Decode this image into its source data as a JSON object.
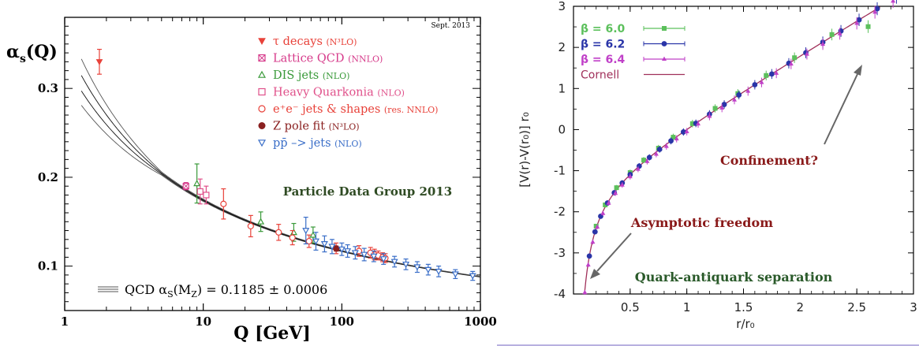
{
  "chart_data": [
    {
      "type": "scatter",
      "corner_note": "Sept. 2013",
      "ylabel_main": "α",
      "ylabel_sub": "s",
      "ylabel_tail": "(Q)",
      "xlabel": "Q [GeV]",
      "xscale": "log",
      "xlim": [
        1,
        1000
      ],
      "ylim": [
        0.05,
        0.38
      ],
      "xticks": [
        1,
        10,
        100,
        1000
      ],
      "xtick_labels": [
        "1",
        "10",
        "100",
        "1000"
      ],
      "yticks": [
        0.1,
        0.2,
        0.3
      ],
      "ytick_labels": [
        "0.1",
        "0.2",
        "0.3"
      ],
      "annotation": "Particle Data Group 2013",
      "band_label": "QCD αS(MZ) = 0.1185 ± 0.0006",
      "band_label_parts": {
        "pre": "QCD α",
        "sub1": "S",
        "mid": "(M",
        "sub2": "Z",
        "post": ") = 0.1185 ± 0.0006"
      },
      "curve": {
        "alpha_mz": 0.1185,
        "mz": 91.19
      },
      "legend": [
        {
          "name": "τ decays",
          "tag": "(N³LO)",
          "marker": "triangle-down-filled",
          "color": "#e8423a"
        },
        {
          "name": "Lattice QCD",
          "tag": "(NNLO)",
          "marker": "square-cross",
          "color": "#d63a8a"
        },
        {
          "name": "DIS jets",
          "tag": "(NLO)",
          "marker": "triangle-up-open",
          "color": "#3a9a3a"
        },
        {
          "name": "Heavy Quarkonia",
          "tag": "(NLO)",
          "marker": "square-open",
          "color": "#e0508a"
        },
        {
          "name": "e⁺e⁻ jets & shapes",
          "tag": "(res. NNLO)",
          "marker": "circle-open",
          "color": "#e8423a"
        },
        {
          "name": "Z pole fit",
          "tag": "(N³LO)",
          "marker": "circle-filled",
          "color": "#8a2020"
        },
        {
          "name": "pp̄ –> jets",
          "tag": "(NLO)",
          "marker": "triangle-down-open",
          "color": "#3a6ec8"
        }
      ],
      "series": [
        {
          "name": "τ decays",
          "points": [
            [
              1.78,
              0.33,
              0.014
            ]
          ]
        },
        {
          "name": "Lattice QCD",
          "points": [
            [
              7.5,
              0.19,
              0.004
            ]
          ]
        },
        {
          "name": "DIS jets",
          "points": [
            [
              9.0,
              0.193,
              0.022
            ],
            [
              26,
              0.15,
              0.011
            ],
            [
              45,
              0.138,
              0.01
            ],
            [
              62,
              0.135,
              0.009
            ]
          ]
        },
        {
          "name": "Heavy Quarkonia",
          "points": [
            [
              9.5,
              0.184,
              0.014
            ],
            [
              10.5,
              0.18,
              0.01
            ]
          ]
        },
        {
          "name": "e⁺e⁻ jets & shapes",
          "points": [
            [
              14,
              0.17,
              0.017
            ],
            [
              22,
              0.145,
              0.012
            ],
            [
              35,
              0.138,
              0.009
            ],
            [
              44,
              0.132,
              0.008
            ],
            [
              58,
              0.128,
              0.007
            ],
            [
              91,
              0.12,
              0.006
            ],
            [
              133,
              0.117,
              0.006
            ],
            [
              161,
              0.115,
              0.006
            ],
            [
              172,
              0.113,
              0.006
            ],
            [
              183,
              0.112,
              0.005
            ],
            [
              197,
              0.11,
              0.005
            ],
            [
              206,
              0.109,
              0.005
            ]
          ]
        },
        {
          "name": "Z pole fit",
          "points": [
            [
              91.2,
              0.1197,
              0.0028
            ]
          ]
        },
        {
          "name": "pp̄ –> jets",
          "points": [
            [
              55,
              0.14,
              0.015
            ],
            [
              65,
              0.128,
              0.01
            ],
            [
              75,
              0.125,
              0.009
            ],
            [
              85,
              0.122,
              0.008
            ],
            [
              100,
              0.119,
              0.007
            ],
            [
              110,
              0.117,
              0.007
            ],
            [
              125,
              0.115,
              0.007
            ],
            [
              145,
              0.113,
              0.007
            ],
            [
              170,
              0.111,
              0.006
            ],
            [
              200,
              0.108,
              0.006
            ],
            [
              240,
              0.105,
              0.006
            ],
            [
              290,
              0.102,
              0.006
            ],
            [
              350,
              0.099,
              0.006
            ],
            [
              420,
              0.096,
              0.006
            ],
            [
              500,
              0.094,
              0.006
            ],
            [
              660,
              0.091,
              0.005
            ],
            [
              880,
              0.089,
              0.005
            ]
          ]
        }
      ]
    },
    {
      "type": "scatter",
      "ylabel": "[V(r)-V(r₀)] r₀",
      "xlabel": "r/r₀",
      "xlim": [
        0,
        3
      ],
      "ylim": [
        -4,
        3
      ],
      "xticks": [
        0.5,
        1,
        1.5,
        2,
        2.5,
        3
      ],
      "xtick_labels": [
        "0.5",
        "1",
        "1.5",
        "2",
        "2.5",
        "3"
      ],
      "yticks": [
        -4,
        -3,
        -2,
        -1,
        0,
        1,
        2,
        3
      ],
      "ytick_labels": [
        "-4",
        "-3",
        "-2",
        "-1",
        "0",
        "1",
        "2",
        "3"
      ],
      "legend": [
        {
          "name": "β = 6.0",
          "color": "#5cc05c"
        },
        {
          "name": "β = 6.2",
          "color": "#2a35a8"
        },
        {
          "name": "β = 6.4",
          "color": "#c040c8"
        },
        {
          "name": "Cornell",
          "color": "#a0305a"
        }
      ],
      "annotations": [
        {
          "text": "Confinement?",
          "color": "#8a1a1a"
        },
        {
          "text": "Asymptotic freedom",
          "color": "#8a1a1a"
        },
        {
          "text": "Quark-antiquark separation",
          "color": "#2a5a2a"
        }
      ],
      "cornell": {
        "a": 0.27,
        "b": 1.65
      },
      "series": [
        {
          "name": "β = 6.0",
          "x": [
            0.2,
            0.28,
            0.38,
            0.5,
            0.62,
            0.75,
            0.88,
            1.05,
            1.25,
            1.45,
            1.7,
            1.95,
            2.28,
            2.6
          ]
        },
        {
          "name": "β = 6.2",
          "x": [
            0.14,
            0.19,
            0.24,
            0.3,
            0.36,
            0.43,
            0.5,
            0.58,
            0.67,
            0.76,
            0.86,
            0.97,
            1.08,
            1.2,
            1.33,
            1.46,
            1.6,
            1.75,
            1.9,
            2.05,
            2.2,
            2.36,
            2.52,
            2.68,
            2.85
          ]
        },
        {
          "name": "β = 6.4",
          "x": [
            0.1,
            0.13,
            0.17,
            0.21,
            0.26,
            0.31,
            0.37,
            0.43,
            0.5,
            0.57,
            0.65,
            0.73,
            0.82,
            0.91,
            1.0,
            1.1,
            1.2,
            1.31,
            1.42,
            1.54,
            1.66,
            1.79,
            1.92,
            2.06,
            2.2,
            2.35,
            2.5,
            2.66,
            2.82
          ]
        }
      ]
    }
  ]
}
